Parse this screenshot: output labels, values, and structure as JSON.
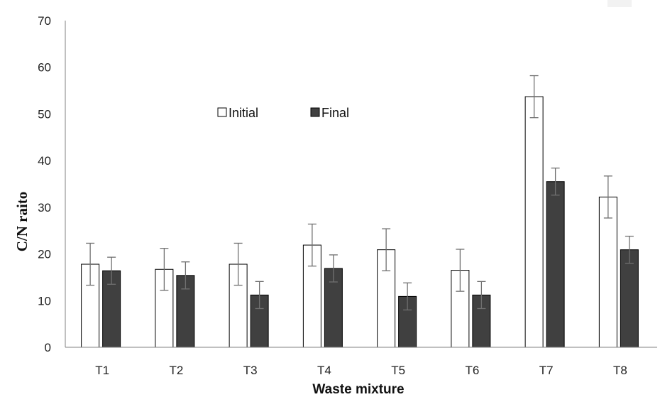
{
  "chart_data": {
    "type": "bar",
    "xlabel": "Waste mixture",
    "ylabel": "C/N raito",
    "categories": [
      "T1",
      "T2",
      "T3",
      "T4",
      "T5",
      "T6",
      "T7",
      "T8"
    ],
    "ylim": [
      0,
      70
    ],
    "yticks": [
      0,
      10,
      20,
      30,
      40,
      50,
      60,
      70
    ],
    "grid": false,
    "legend_position": "upper-left-center, inside plot",
    "series": [
      {
        "name": "Initial",
        "color": "#ffffff",
        "edge_color": "#000000",
        "values": [
          17.8,
          16.7,
          17.8,
          21.9,
          20.9,
          16.5,
          53.7,
          32.2
        ],
        "error": [
          4.5,
          4.5,
          4.5,
          4.5,
          4.5,
          4.5,
          4.5,
          4.5
        ]
      },
      {
        "name": "Final",
        "color": "#404040",
        "edge_color": "#000000",
        "values": [
          16.4,
          15.4,
          11.2,
          16.9,
          10.9,
          11.2,
          35.5,
          20.9
        ],
        "error": [
          2.9,
          2.9,
          2.9,
          2.9,
          2.9,
          2.9,
          2.9,
          2.9
        ]
      }
    ]
  }
}
